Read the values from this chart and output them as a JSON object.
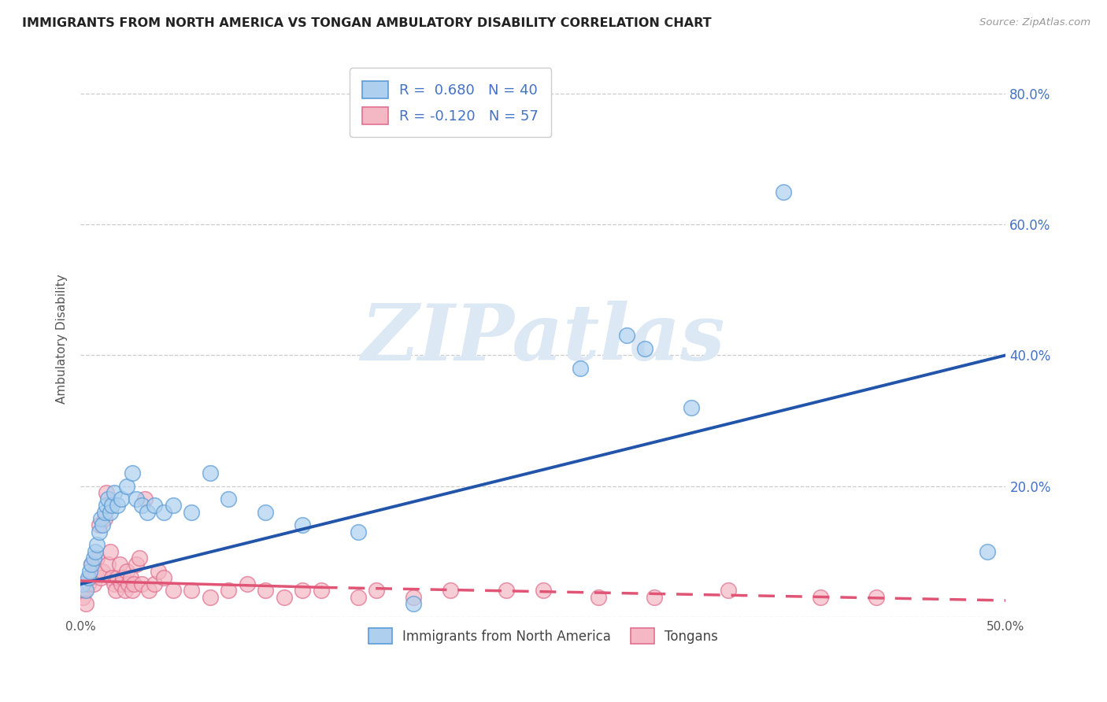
{
  "title": "IMMIGRANTS FROM NORTH AMERICA VS TONGAN AMBULATORY DISABILITY CORRELATION CHART",
  "source": "Source: ZipAtlas.com",
  "ylabel": "Ambulatory Disability",
  "xlim": [
    0.0,
    0.5
  ],
  "ylim": [
    0.0,
    0.85
  ],
  "xticks": [
    0.0,
    0.1,
    0.2,
    0.3,
    0.4,
    0.5
  ],
  "xticklabels": [
    "0.0%",
    "",
    "",
    "",
    "",
    "50.0%"
  ],
  "ytick_vals": [
    0.0,
    0.2,
    0.4,
    0.6,
    0.8
  ],
  "right_yticklabels": [
    "",
    "20.0%",
    "40.0%",
    "60.0%",
    "80.0%"
  ],
  "legend_r1_text": "R =  0.680   N = 40",
  "legend_r2_text": "R = -0.120   N = 57",
  "blue_fill": "#aed0ee",
  "blue_edge": "#5b9bd5",
  "pink_fill": "#f4b8c4",
  "pink_edge": "#e07090",
  "blue_line_color": "#2255aa",
  "pink_line_color": "#e05575",
  "watermark_color": "#dce9f5",
  "background_color": "#ffffff",
  "grid_color": "#cccccc",
  "title_color": "#222222",
  "source_color": "#999999",
  "tick_label_color": "#4472c4",
  "blue_scatter": [
    [
      0.001,
      0.05
    ],
    [
      0.003,
      0.04
    ],
    [
      0.004,
      0.06
    ],
    [
      0.005,
      0.07
    ],
    [
      0.006,
      0.08
    ],
    [
      0.007,
      0.09
    ],
    [
      0.008,
      0.1
    ],
    [
      0.009,
      0.11
    ],
    [
      0.01,
      0.13
    ],
    [
      0.011,
      0.15
    ],
    [
      0.012,
      0.14
    ],
    [
      0.013,
      0.16
    ],
    [
      0.014,
      0.17
    ],
    [
      0.015,
      0.18
    ],
    [
      0.016,
      0.16
    ],
    [
      0.017,
      0.17
    ],
    [
      0.018,
      0.19
    ],
    [
      0.02,
      0.17
    ],
    [
      0.022,
      0.18
    ],
    [
      0.025,
      0.2
    ],
    [
      0.028,
      0.22
    ],
    [
      0.03,
      0.18
    ],
    [
      0.033,
      0.17
    ],
    [
      0.036,
      0.16
    ],
    [
      0.04,
      0.17
    ],
    [
      0.045,
      0.16
    ],
    [
      0.05,
      0.17
    ],
    [
      0.06,
      0.16
    ],
    [
      0.07,
      0.22
    ],
    [
      0.08,
      0.18
    ],
    [
      0.1,
      0.16
    ],
    [
      0.12,
      0.14
    ],
    [
      0.15,
      0.13
    ],
    [
      0.18,
      0.02
    ],
    [
      0.27,
      0.38
    ],
    [
      0.295,
      0.43
    ],
    [
      0.305,
      0.41
    ],
    [
      0.33,
      0.32
    ],
    [
      0.38,
      0.65
    ],
    [
      0.49,
      0.1
    ]
  ],
  "pink_scatter": [
    [
      0.001,
      0.03
    ],
    [
      0.002,
      0.04
    ],
    [
      0.003,
      0.02
    ],
    [
      0.004,
      0.05
    ],
    [
      0.005,
      0.06
    ],
    [
      0.006,
      0.08
    ],
    [
      0.007,
      0.05
    ],
    [
      0.008,
      0.07
    ],
    [
      0.009,
      0.09
    ],
    [
      0.01,
      0.14
    ],
    [
      0.011,
      0.06
    ],
    [
      0.012,
      0.07
    ],
    [
      0.013,
      0.15
    ],
    [
      0.014,
      0.19
    ],
    [
      0.015,
      0.08
    ],
    [
      0.016,
      0.1
    ],
    [
      0.017,
      0.06
    ],
    [
      0.018,
      0.05
    ],
    [
      0.019,
      0.04
    ],
    [
      0.02,
      0.06
    ],
    [
      0.021,
      0.08
    ],
    [
      0.022,
      0.05
    ],
    [
      0.023,
      0.06
    ],
    [
      0.024,
      0.04
    ],
    [
      0.025,
      0.07
    ],
    [
      0.026,
      0.05
    ],
    [
      0.027,
      0.06
    ],
    [
      0.028,
      0.04
    ],
    [
      0.029,
      0.05
    ],
    [
      0.03,
      0.08
    ],
    [
      0.032,
      0.09
    ],
    [
      0.033,
      0.05
    ],
    [
      0.035,
      0.18
    ],
    [
      0.037,
      0.04
    ],
    [
      0.04,
      0.05
    ],
    [
      0.042,
      0.07
    ],
    [
      0.045,
      0.06
    ],
    [
      0.05,
      0.04
    ],
    [
      0.06,
      0.04
    ],
    [
      0.07,
      0.03
    ],
    [
      0.08,
      0.04
    ],
    [
      0.09,
      0.05
    ],
    [
      0.1,
      0.04
    ],
    [
      0.11,
      0.03
    ],
    [
      0.12,
      0.04
    ],
    [
      0.13,
      0.04
    ],
    [
      0.15,
      0.03
    ],
    [
      0.16,
      0.04
    ],
    [
      0.18,
      0.03
    ],
    [
      0.2,
      0.04
    ],
    [
      0.23,
      0.04
    ],
    [
      0.25,
      0.04
    ],
    [
      0.28,
      0.03
    ],
    [
      0.31,
      0.03
    ],
    [
      0.35,
      0.04
    ],
    [
      0.4,
      0.03
    ],
    [
      0.43,
      0.03
    ]
  ],
  "blue_trend": [
    0.0,
    0.5,
    0.05,
    0.4
  ],
  "pink_trend_solid": [
    0.0,
    0.13,
    0.055,
    0.045
  ],
  "pink_trend_dashed": [
    0.13,
    0.5,
    0.045,
    0.025
  ],
  "watermark": "ZIPatlas"
}
